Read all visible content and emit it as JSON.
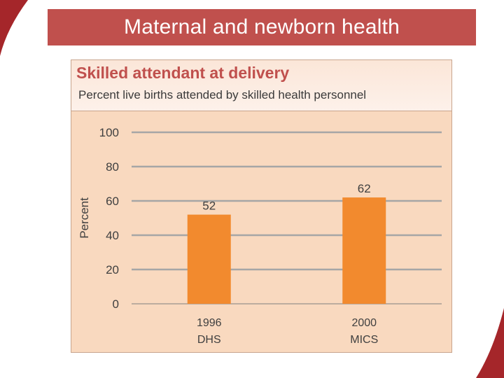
{
  "slide": {
    "title": "Maternal and newborn health"
  },
  "colors": {
    "header_bar": "#c0504d",
    "chart_title": "#c0504d",
    "panel_bg": "#f9d9bf",
    "bar": "#f28a2e",
    "gridline": "#a6a6a6"
  },
  "chart_data": {
    "type": "bar",
    "title": "Skilled attendant at delivery",
    "subtitle": "Percent live births attended by skilled health personnel",
    "ylabel": "Percent",
    "xlabel": "",
    "categories": [
      [
        "1996",
        "DHS"
      ],
      [
        "2000",
        "MICS"
      ]
    ],
    "values": [
      52,
      62
    ],
    "ylim": [
      0,
      100
    ],
    "yticks": [
      0,
      20,
      40,
      60,
      80,
      100
    ],
    "grid": true,
    "data_labels": true
  }
}
